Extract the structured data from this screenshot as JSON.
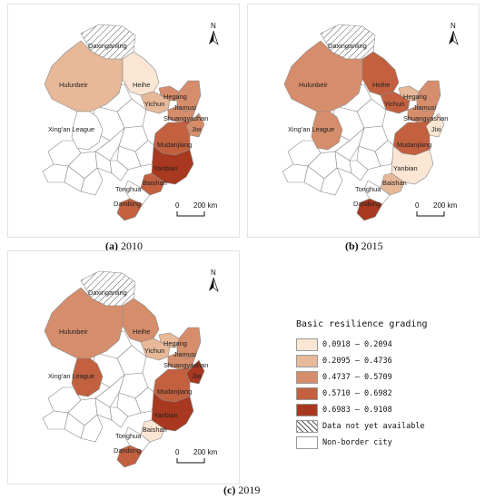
{
  "panels": [
    {
      "caption_tag": "(a)",
      "caption_year": "2010",
      "regions": {
        "daxinganling": "nodata",
        "hulunbeir": 2,
        "heihe": 1,
        "xingan": 0,
        "yichun": 2,
        "hegang": 3,
        "jiamusi": 3,
        "shuangyashan": 3,
        "jixi": 3,
        "mudanjiang": 4,
        "yanbian": 5,
        "baishan": 4,
        "tonghua": 0,
        "dandong": 4
      }
    },
    {
      "caption_tag": "(b)",
      "caption_year": "2015",
      "regions": {
        "daxinganling": "nodata",
        "hulunbeir": 3,
        "heihe": 4,
        "xingan": 3,
        "yichun": 4,
        "hegang": 2,
        "jiamusi": 3,
        "shuangyashan": 3,
        "jixi": 1,
        "mudanjiang": 4,
        "yanbian": 1,
        "baishan": 2,
        "tonghua": 0,
        "dandong": 5
      }
    },
    {
      "caption_tag": "(c)",
      "caption_year": "2019",
      "regions": {
        "daxinganling": "nodata",
        "hulunbeir": 3,
        "heihe": 3,
        "xingan": 4,
        "yichun": 2,
        "hegang": 2,
        "jiamusi": 3,
        "shuangyashan": 3,
        "jixi": 5,
        "mudanjiang": 4,
        "yanbian": 5,
        "baishan": 1,
        "tonghua": 0,
        "dandong": 4
      }
    }
  ],
  "map_labels": {
    "daxinganling": "Daxinganling",
    "hulunbeir": "Hulunbeir",
    "heihe": "Heihe",
    "xingan": "Xing'an League",
    "yichun": "Yichun",
    "hegang": "Hegang",
    "jiamusi": "Jiamusi",
    "shuangyashan": "Shuangyashan",
    "jixi": "Jixi",
    "mudanjiang": "Mudanjiang",
    "yanbian": "Yanbian",
    "baishan": "Baishan",
    "tonghua": "Tonghua",
    "dandong": "Dandong"
  },
  "north_label": "N",
  "scale": {
    "zero": "0",
    "distance": "200 km"
  },
  "legend": {
    "title": "Basic resilience grading",
    "items": [
      {
        "label": "0.0918 — 0.2094",
        "color": "#fbe6d3"
      },
      {
        "label": "0.2095 — 0.4736",
        "color": "#e7b999"
      },
      {
        "label": "0.4737 — 0.5709",
        "color": "#d68d6b"
      },
      {
        "label": "0.5710 — 0.6982",
        "color": "#c2603f"
      },
      {
        "label": "0.6983 — 0.9108",
        "color": "#a8381f"
      },
      {
        "label": "Data not yet available",
        "pattern": "hatch"
      },
      {
        "label": "Non-border city",
        "color": "#ffffff"
      }
    ]
  },
  "colors": {
    "class_1": "#fbe6d3",
    "class_2": "#e7b999",
    "class_3": "#d68d6b",
    "class_4": "#c2603f",
    "class_5": "#a8381f",
    "non_border": "#ffffff",
    "boundary": "#8a8a8a"
  }
}
